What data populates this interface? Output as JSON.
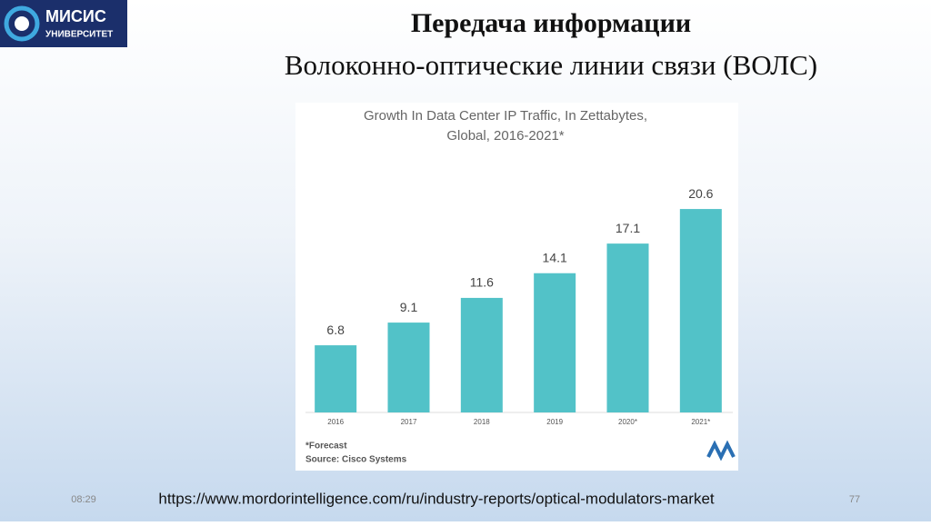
{
  "logo": {
    "name": "МИСИС",
    "subtitle": "УНИВЕРСИТЕТ"
  },
  "header": {
    "title": "Передача информации",
    "subtitle": "Волоконно-оптические линии связи (ВОЛС)"
  },
  "chart_data": {
    "type": "bar",
    "title": [
      "Growth In Data Center IP Traffic, In Zettabytes,",
      "Global, 2016-2021*"
    ],
    "categories": [
      "2016",
      "2017",
      "2018",
      "2019",
      "2020*",
      "2021*"
    ],
    "values": [
      6.8,
      9.1,
      11.6,
      14.1,
      17.1,
      20.6
    ],
    "color": "#52c2c8",
    "notes": [
      "*Forecast",
      "Source: Cisco Systems"
    ]
  },
  "footer": {
    "time": "08:29",
    "link": "https://www.mordorintelligence.com/ru/industry-reports/optical-modulators-market",
    "page": "77"
  }
}
